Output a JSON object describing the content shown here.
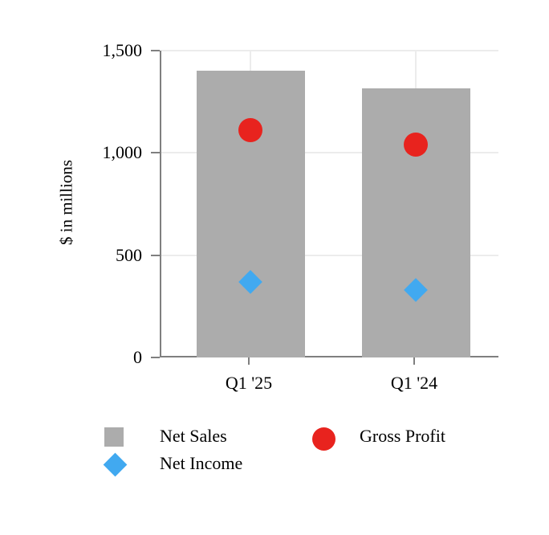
{
  "chart_data": {
    "type": "bar",
    "title": "",
    "categories": [
      "Q1 '25",
      "Q1 '24"
    ],
    "series": [
      {
        "name": "Net Sales",
        "render": "bar",
        "values": [
          1400,
          1315
        ]
      },
      {
        "name": "Gross Profit",
        "render": "point-circle",
        "values": [
          1110,
          1040
        ]
      },
      {
        "name": "Net Income",
        "render": "point-diamond",
        "values": [
          370,
          330
        ]
      }
    ],
    "xlabel": "",
    "ylabel": "$ in millions",
    "ylim": [
      0,
      1500
    ],
    "yticks": [
      {
        "value": 0,
        "label": "0"
      },
      {
        "value": 500,
        "label": "500"
      },
      {
        "value": 1000,
        "label": "1,000"
      },
      {
        "value": 1500,
        "label": "1,500"
      }
    ],
    "grid": true,
    "legend_position": "bottom"
  },
  "legend": {
    "net_sales": "Net Sales",
    "net_income": "Net Income",
    "gross_profit": "Gross Profit"
  },
  "colors": {
    "bar_gray": "#ACACAC",
    "circle_red": "#E8231E",
    "diamond_blue": "#41A9F0",
    "axis": "#7F7F7F",
    "gridline": "#ECECEC",
    "text": "#000000"
  }
}
